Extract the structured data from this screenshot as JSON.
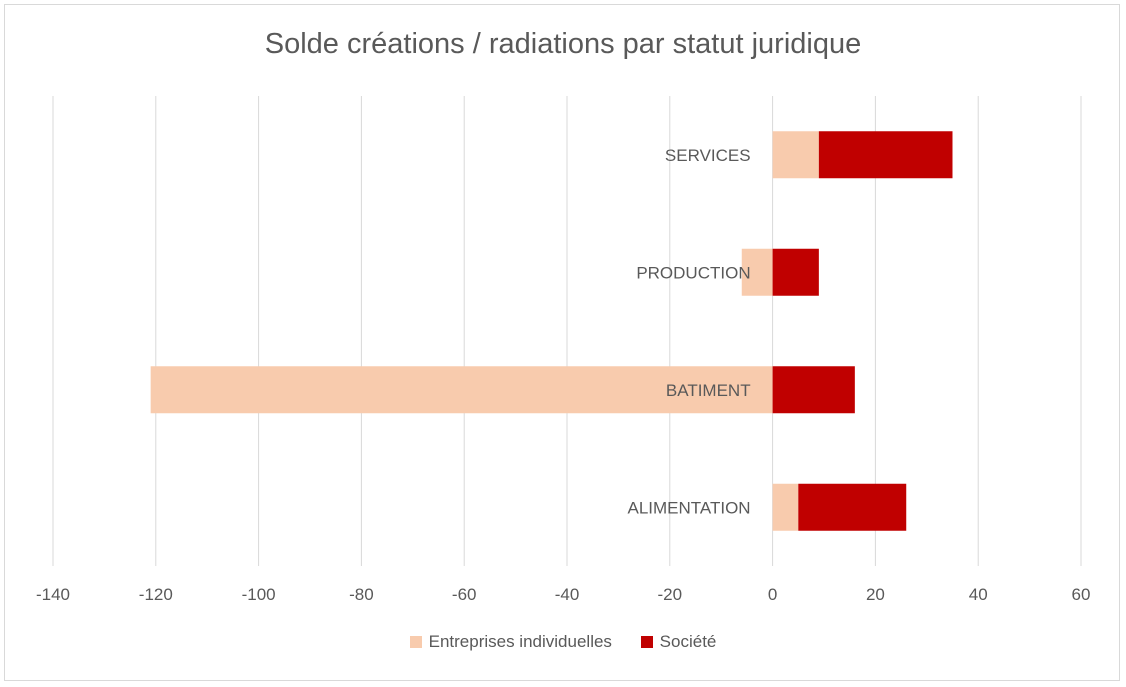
{
  "chart_data": {
    "type": "bar",
    "orientation": "horizontal",
    "stacked": true,
    "title": "Solde créations / radiations par statut juridique",
    "categories": [
      "SERVICES",
      "PRODUCTION",
      "BATIMENT",
      "ALIMENTATION"
    ],
    "series": [
      {
        "name": "Entreprises individuelles",
        "color": "#f8cbad",
        "values": [
          9,
          -6,
          -121,
          5
        ]
      },
      {
        "name": "Société",
        "color": "#c00000",
        "values": [
          26,
          9,
          16,
          21
        ]
      }
    ],
    "xlim": [
      -140,
      60
    ],
    "xticks": [
      "-140",
      "-120",
      "-100",
      "-80",
      "-60",
      "-40",
      "-20",
      "0",
      "20",
      "40",
      "60"
    ],
    "grid": true,
    "legend_position": "bottom"
  }
}
